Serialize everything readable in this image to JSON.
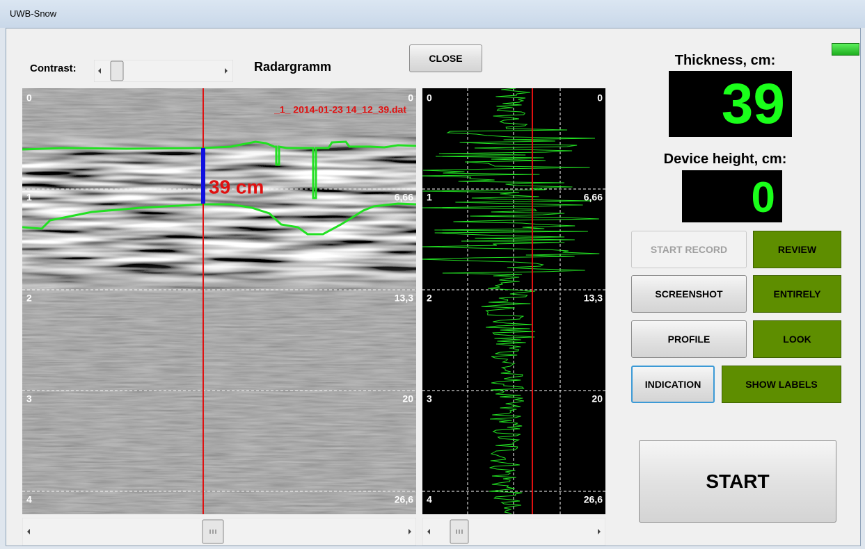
{
  "window": {
    "title": "UWB-Snow"
  },
  "toolbar": {
    "contrast_label": "Contrast:",
    "view_title": "Radargramm",
    "close_button": "CLOSE"
  },
  "radargram": {
    "file_name": "_1_ 2014-01-23 14_12_39.dat",
    "thickness_label": "39 cm"
  },
  "depth_scale": {
    "left": [
      "0",
      "1",
      "2",
      "3",
      "4"
    ],
    "right": [
      "0",
      "6,66",
      "13,3",
      "20",
      "26,6"
    ]
  },
  "readouts": {
    "thickness_title": "Thickness, cm:",
    "thickness_value": "39",
    "height_title": "Device height, cm:",
    "height_value": "0"
  },
  "buttons": [
    "START RECORD",
    "REVIEW",
    "SCREENSHOT",
    "ENTIRELY",
    "PROFILE",
    "LOOK",
    "INDICATION",
    "SHOW LABELS"
  ],
  "start_button": "START"
}
